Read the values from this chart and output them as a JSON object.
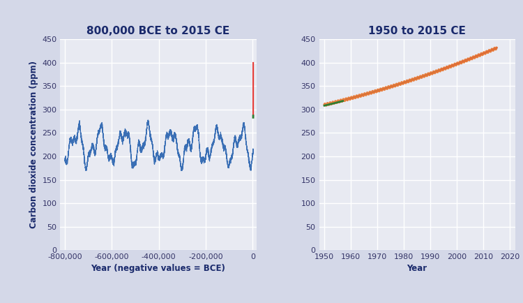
{
  "title_left": "800,000 BCE to 2015 CE",
  "title_right": "1950 to 2015 CE",
  "ylabel": "Carbon dioxide concentration (ppm)",
  "xlabel_left": "Year (negative values = BCE)",
  "xlabel_right": "Year",
  "bg_color": "#e8eaf2",
  "grid_color": "#ffffff",
  "title_color": "#1a2a6c",
  "axis_label_color": "#1a2a6c",
  "tick_label_color": "#333366",
  "line_color_ice": "#3a6fb5",
  "line_color_orange": "#e8732a",
  "line_color_blue": "#4472c4",
  "line_color_green": "#2e7d32",
  "line_color_red": "#e53935",
  "line_color_pink": "#e57373",
  "line_color_purple": "#9c27b0",
  "ylim": [
    0,
    450
  ],
  "yticks": [
    0,
    50,
    100,
    150,
    200,
    250,
    300,
    350,
    400,
    450
  ],
  "xlim_left": [
    -820000,
    15000
  ],
  "xticks_left": [
    -800000,
    -600000,
    -400000,
    -200000,
    0
  ],
  "xlim_right": [
    1948,
    2022
  ],
  "xticks_right": [
    1950,
    1960,
    1970,
    1980,
    1990,
    2000,
    2010,
    2020
  ],
  "fig_bg": "#d4d8e8"
}
